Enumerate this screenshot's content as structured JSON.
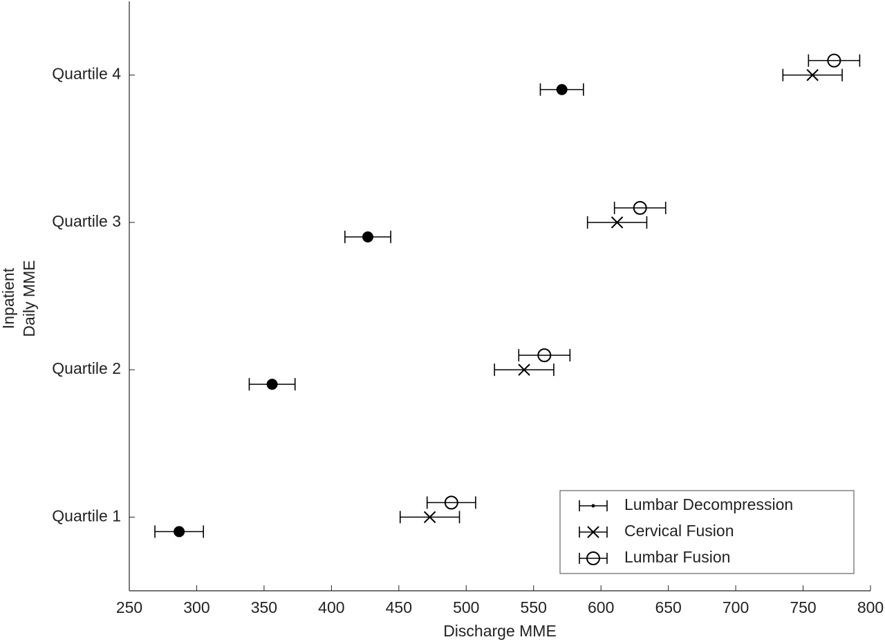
{
  "chart_data": {
    "type": "errorbar-dot",
    "xlabel": "Discharge MME",
    "ylabel": [
      "Inpatient",
      "Daily MME"
    ],
    "categories": [
      "Quartile 1",
      "Quartile 2",
      "Quartile 3",
      "Quartile 4"
    ],
    "xlim": [
      250,
      800
    ],
    "xticks": [
      250,
      300,
      350,
      400,
      450,
      500,
      550,
      600,
      650,
      700,
      750,
      800
    ],
    "legend": "lower right",
    "series": [
      {
        "name": "Lumbar Decompression",
        "color": "#000000",
        "marker": "filled-circle",
        "values": [
          287,
          356,
          427,
          571
        ],
        "errors": [
          18,
          17,
          17,
          16
        ]
      },
      {
        "name": "Cervical Fusion",
        "color": "#000000",
        "marker": "x",
        "values": [
          473,
          543,
          612,
          757
        ],
        "errors": [
          22,
          22,
          22,
          22
        ]
      },
      {
        "name": "Lumbar Fusion",
        "color": "#000000",
        "marker": "circle",
        "values": [
          489,
          558,
          629,
          773
        ],
        "errors": [
          18,
          19,
          19,
          19
        ]
      }
    ]
  }
}
